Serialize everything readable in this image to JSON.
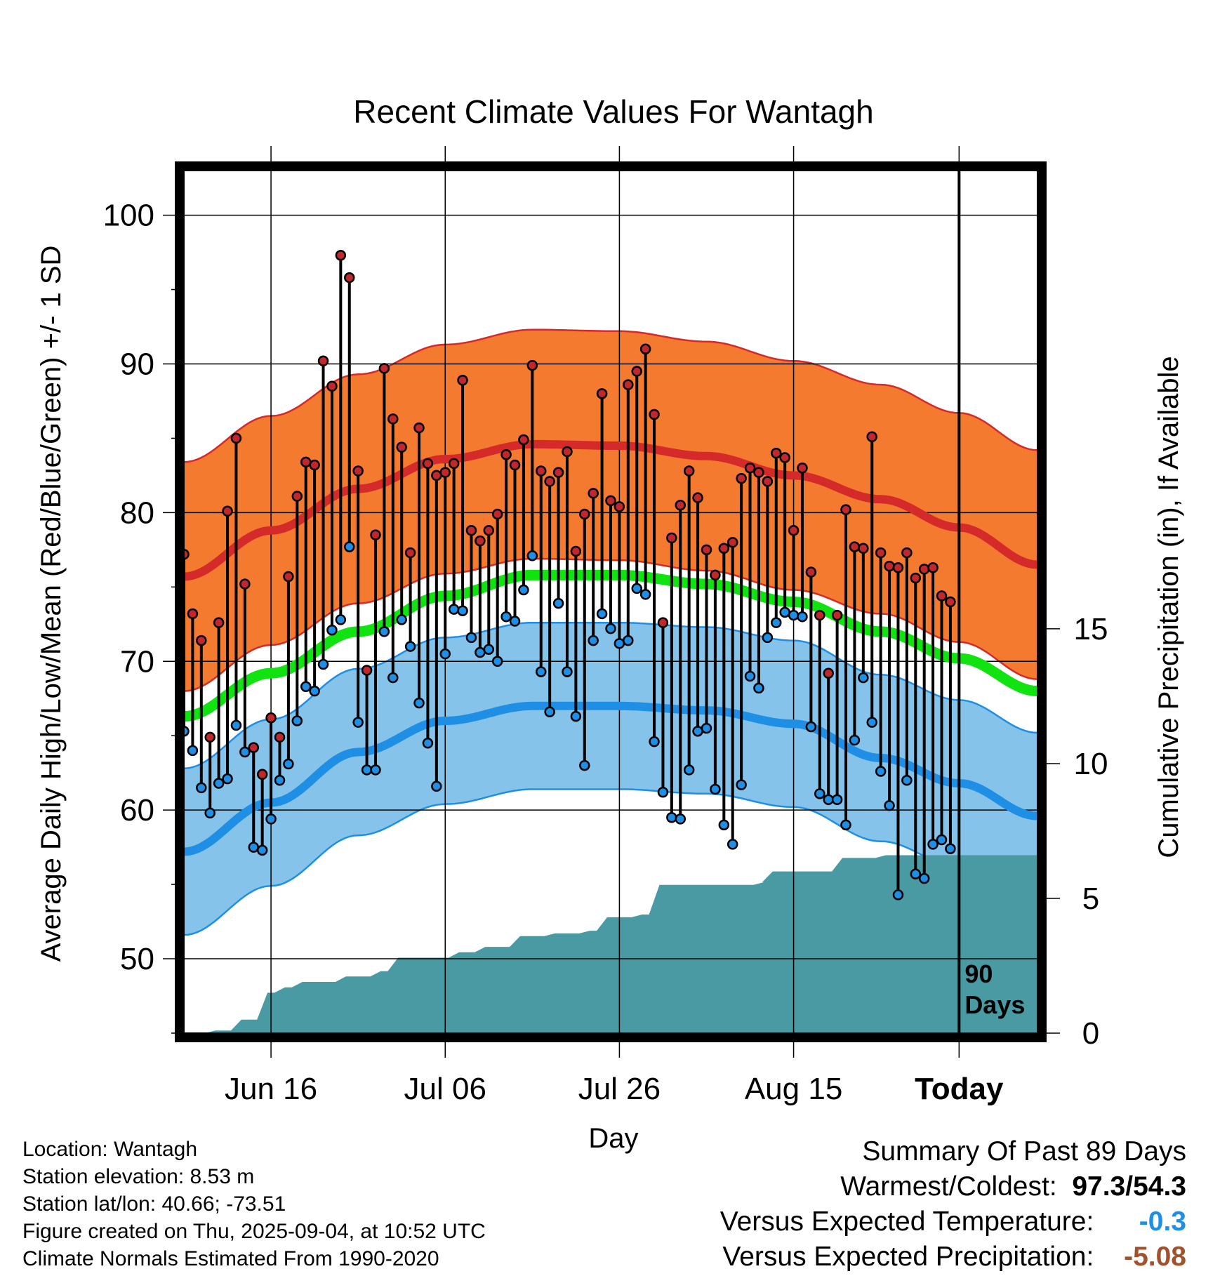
{
  "chart_data": {
    "type": "line",
    "title": "Recent Climate Values For Wantagh",
    "xlabel": "Day",
    "ylabel_left": "Average Daily High/Low/Mean (Red/Blue/Green) +/- 1 SD",
    "ylabel_right": "Cumulative Precipitation (in), If Available",
    "ylim_left": [
      45,
      103
    ],
    "yticks_left": [
      "50",
      "60",
      "70",
      "80",
      "90",
      "100"
    ],
    "ylim_right": [
      0,
      32
    ],
    "yticks_right": [
      "0",
      "5",
      "10",
      "15"
    ],
    "xlim_days": [
      -89,
      9
    ],
    "x_ticks": [
      {
        "day": -79,
        "label": "Jun 16"
      },
      {
        "day": -59,
        "label": "Jul 06"
      },
      {
        "day": -39,
        "label": "Jul 26"
      },
      {
        "day": -19,
        "label": "Aug 15"
      },
      {
        "day": 0,
        "label": "Today"
      }
    ],
    "today_marker_label": [
      "90",
      "Days"
    ],
    "normals": {
      "day": [
        -89,
        -79,
        -69,
        -59,
        -49,
        -39,
        -29,
        -19,
        -9,
        0,
        9
      ],
      "high_mean": [
        75.7,
        78.8,
        81.6,
        83.6,
        84.6,
        84.5,
        83.8,
        82.5,
        80.9,
        79.0,
        76.5
      ],
      "high_sd": 7.7,
      "mean": [
        66.3,
        69.2,
        72.0,
        74.4,
        75.8,
        75.8,
        75.2,
        74.0,
        72.0,
        70.2,
        68.0
      ],
      "low_mean": [
        57.2,
        60.5,
        63.9,
        66.0,
        67.0,
        67.0,
        66.7,
        65.8,
        63.5,
        61.8,
        59.6
      ],
      "low_sd": 5.6
    },
    "series": [
      {
        "name": "Daily High",
        "color": "#c0282d",
        "values": [
          77.2,
          73.2,
          71.4,
          64.9,
          72.6,
          80.1,
          85.0,
          75.2,
          64.2,
          62.4,
          66.2,
          64.9,
          75.7,
          81.1,
          83.4,
          83.2,
          90.2,
          88.5,
          97.3,
          95.8,
          82.8,
          69.4,
          78.5,
          89.7,
          86.3,
          84.4,
          77.3,
          85.7,
          83.3,
          82.5,
          82.7,
          83.3,
          88.9,
          78.8,
          78.1,
          78.8,
          79.9,
          83.9,
          83.2,
          84.9,
          89.9,
          82.8,
          82.1,
          82.7,
          84.1,
          77.4,
          79.9,
          81.3,
          88.0,
          80.8,
          80.4,
          88.6,
          89.5,
          91.0,
          86.6,
          72.6,
          78.3,
          80.5,
          82.8,
          81.0,
          77.5,
          75.8,
          77.6,
          78.0,
          82.3,
          83.0,
          82.7,
          82.1,
          84.0,
          83.7,
          78.8,
          83.0,
          76.0,
          73.1,
          69.2,
          73.1,
          80.2,
          77.7,
          77.6,
          85.1,
          77.3,
          76.4,
          76.3,
          77.3,
          75.6,
          76.2,
          76.3,
          74.4,
          74.0
        ],
        "lows": [
          65.3,
          64.0,
          61.5,
          59.8,
          61.8,
          62.1,
          65.7,
          63.9,
          57.5,
          57.3,
          59.4,
          62.0,
          63.1,
          66.0,
          68.3,
          68.0,
          69.8,
          72.1,
          72.8,
          77.7,
          65.9,
          62.7,
          62.7,
          72.0,
          68.9,
          72.8,
          71.0,
          67.2,
          64.5,
          61.6,
          70.5,
          73.5,
          73.4,
          71.6,
          70.6,
          70.8,
          70.0,
          73.0,
          72.7,
          74.8,
          77.1,
          69.3,
          66.6,
          73.9,
          69.3,
          66.3,
          63.0,
          71.4,
          73.2,
          72.2,
          71.2,
          71.4,
          74.9,
          74.5,
          64.6,
          61.2,
          59.5,
          59.4,
          62.7,
          65.3,
          65.5,
          61.4,
          59.0,
          57.7,
          61.7,
          69.0,
          68.2,
          71.6,
          72.6,
          73.3,
          73.1,
          73.0,
          65.6,
          61.1,
          60.7,
          60.7,
          59.0,
          64.7,
          68.9,
          65.9,
          62.6,
          60.3,
          54.3,
          62.0,
          55.7,
          55.4,
          57.7,
          58.0,
          57.4
        ]
      },
      {
        "name": "Daily Low",
        "color": "#1f8fe5",
        "values": [
          65.3,
          64.0,
          61.5,
          59.8,
          61.8,
          62.1,
          65.7,
          63.9,
          57.5,
          57.3,
          59.4,
          62.0,
          63.1,
          66.0,
          68.3,
          68.0,
          69.8,
          72.1,
          72.8,
          77.7,
          65.9,
          62.7,
          62.7,
          72.0,
          68.9,
          72.8,
          71.0,
          67.2,
          64.5,
          61.6,
          70.5,
          73.5,
          73.4,
          71.6,
          70.6,
          70.8,
          70.0,
          73.0,
          72.7,
          74.8,
          77.1,
          69.3,
          66.6,
          73.9,
          69.3,
          66.3,
          63.0,
          71.4,
          73.2,
          72.2,
          71.2,
          71.4,
          74.9,
          74.5,
          64.6,
          61.2,
          59.5,
          59.4,
          62.7,
          65.3,
          65.5,
          61.4,
          59.0,
          57.7,
          61.7,
          69.0,
          68.2,
          71.6,
          72.6,
          73.3,
          73.1,
          73.0,
          65.6,
          61.1,
          60.7,
          60.7,
          59.0,
          64.7,
          68.9,
          65.9,
          62.6,
          60.3,
          54.3,
          62.0,
          55.7,
          55.4,
          57.7,
          58.0,
          57.4
        ]
      },
      {
        "name": "Cumulative Precipitation",
        "color": "#4a9aa3",
        "precip_steps": [
          {
            "day": -86,
            "value": 0.1
          },
          {
            "day": -83,
            "value": 0.5
          },
          {
            "day": -80,
            "value": 1.5
          },
          {
            "day": -78,
            "value": 1.7
          },
          {
            "day": -76,
            "value": 1.9
          },
          {
            "day": -71,
            "value": 2.1
          },
          {
            "day": -67,
            "value": 2.3
          },
          {
            "day": -65,
            "value": 2.8
          },
          {
            "day": -60,
            "value": 2.8
          },
          {
            "day": -58,
            "value": 3.0
          },
          {
            "day": -55,
            "value": 3.2
          },
          {
            "day": -51,
            "value": 3.6
          },
          {
            "day": -47,
            "value": 3.7
          },
          {
            "day": -43,
            "value": 3.8
          },
          {
            "day": -41,
            "value": 4.3
          },
          {
            "day": -37,
            "value": 4.4
          },
          {
            "day": -35,
            "value": 5.5
          },
          {
            "day": -31,
            "value": 5.5
          },
          {
            "day": -23,
            "value": 5.6
          },
          {
            "day": -22,
            "value": 6.0
          },
          {
            "day": -14,
            "value": 6.5
          },
          {
            "day": -9,
            "value": 6.6
          },
          {
            "day": 0,
            "value": 6.6
          }
        ]
      }
    ]
  },
  "info": {
    "location": "Location: Wantagh",
    "elevation": "Station elevation: 8.53 m",
    "latlon": "Station lat/lon: 40.66; -73.51",
    "created": "Figure created on Thu, 2025-09-04, at 10:52 UTC",
    "normals": "Climate Normals Estimated From 1990-2020"
  },
  "summary": {
    "heading": "Summary Of Past 89 Days",
    "extremes_label": "Warmest/Coldest:",
    "extremes_value": "97.3/54.3",
    "temp_label": "Versus Expected Temperature:",
    "temp_value": "-0.3",
    "precip_label": "Versus Expected Precipitation:",
    "precip_value": "-5.08",
    "temp_color": "#1f8fe5",
    "precip_color": "#a0522d"
  }
}
